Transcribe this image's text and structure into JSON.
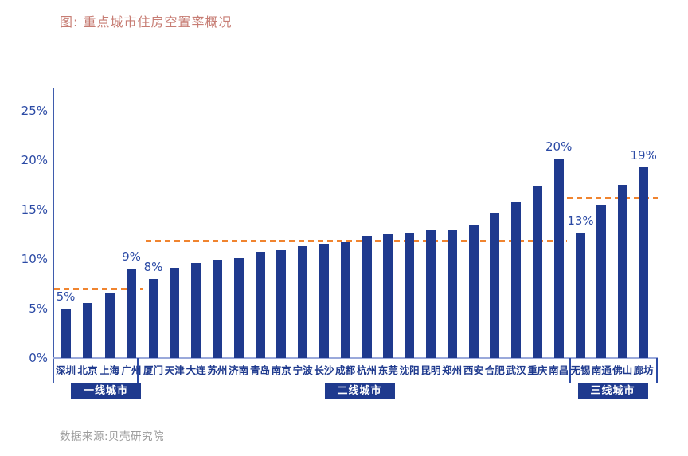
{
  "footer": "数据来源:贝壳研究院",
  "colors": {
    "bar": "#1F3A8E",
    "axis_text": "#2B4AA5",
    "axis_line": "#3F5CAD",
    "baseline": "#9AA9DB",
    "dashed_line": "#F0842F",
    "title": "#C77D74",
    "footer": "#9B9B9B",
    "badge_bg": "#1F3A8E",
    "badge_text": "#FFFFFF"
  },
  "chart_data": {
    "type": "bar",
    "title": "图: 重点城市住房空置率概况",
    "xlabel": "",
    "ylabel": "",
    "unit": "%",
    "ylim": [
      0,
      25
    ],
    "grid": false,
    "legend": null,
    "yticks": [
      "0%",
      "5%",
      "10%",
      "15%",
      "20%",
      "25%"
    ],
    "note": "orange dashed line = group average vacancy rate",
    "groups": [
      {
        "label": "一线城市",
        "avg_line": 7.0,
        "cities": [
          "深圳",
          "北京",
          "上海",
          "广州"
        ],
        "values": [
          5.0,
          5.6,
          6.5,
          9.0
        ],
        "point_labels": [
          "5%",
          null,
          null,
          "9%"
        ]
      },
      {
        "label": "二线城市",
        "avg_line": 11.8,
        "cities": [
          "厦门",
          "天津",
          "大连",
          "苏州",
          "济南",
          "青岛",
          "南京",
          "宁波",
          "长沙",
          "成都",
          "杭州",
          "东莞",
          "沈阳",
          "昆明",
          "郑州",
          "西安",
          "合肥",
          "武汉",
          "重庆",
          "南昌"
        ],
        "values": [
          8.0,
          9.1,
          9.6,
          9.9,
          10.1,
          10.7,
          11.0,
          11.4,
          11.5,
          11.8,
          12.3,
          12.5,
          12.7,
          12.9,
          13.0,
          13.5,
          14.7,
          15.7,
          17.4,
          20.2
        ],
        "point_labels": [
          "8%",
          null,
          null,
          null,
          null,
          null,
          null,
          null,
          null,
          null,
          null,
          null,
          null,
          null,
          null,
          null,
          null,
          null,
          null,
          "20%"
        ]
      },
      {
        "label": "三线城市",
        "avg_line": 16.2,
        "cities": [
          "无锡",
          "南通",
          "佛山",
          "廊坊"
        ],
        "values": [
          12.7,
          15.5,
          17.5,
          19.3
        ],
        "point_labels": [
          "13%",
          null,
          null,
          "19%"
        ]
      }
    ]
  }
}
